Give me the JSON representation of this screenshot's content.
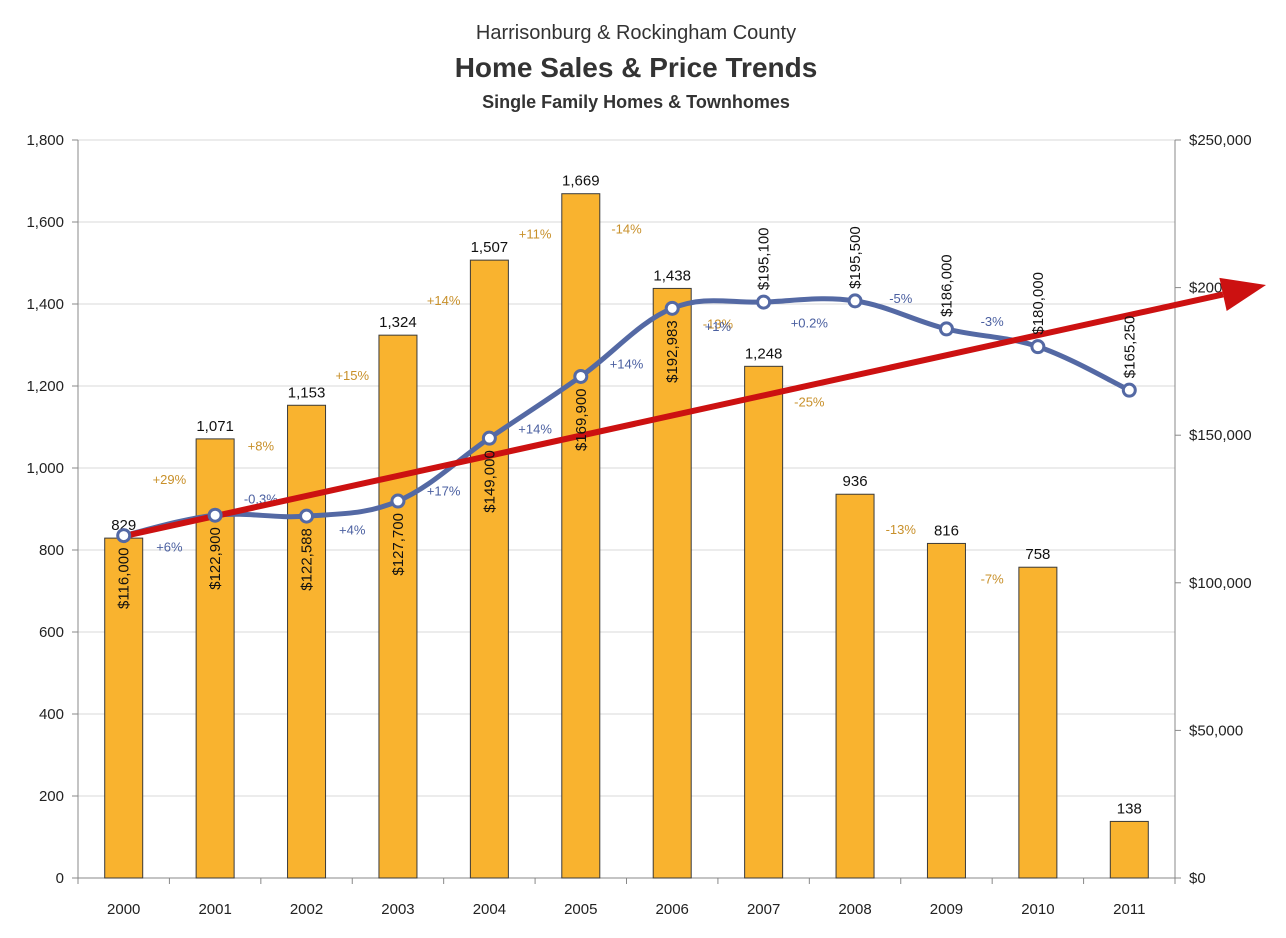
{
  "title": "Harrisonburg & Rockingham County",
  "subtitle": "Home Sales & Price Trends",
  "subtitle2": "Single Family Homes & Townhomes",
  "colors": {
    "bars": "#f9b32f",
    "priceLine": "#5469a4",
    "trendArrow": "#cc1111",
    "grid": "#d9d9d9"
  },
  "chart_data": {
    "type": "bar",
    "categories": [
      "2000",
      "2001",
      "2002",
      "2003",
      "2004",
      "2005",
      "2006",
      "2007",
      "2008",
      "2009",
      "2010",
      "2011"
    ],
    "series": [
      {
        "values": [
          829,
          1071,
          1153,
          1324,
          1507,
          1669,
          1438,
          1248,
          936,
          816,
          758,
          138
        ],
        "labels": [
          "829",
          "1,071",
          "1,153",
          "1,324",
          "1,507",
          "1,669",
          "1,438",
          "1,248",
          "936",
          "816",
          "758",
          "138"
        ]
      },
      {
        "type": "line",
        "axis": "right",
        "values": [
          116000,
          122900,
          122588,
          127700,
          149000,
          169900,
          192983,
          195100,
          195500,
          186000,
          180000,
          165250
        ],
        "labels": [
          "$116,000",
          "$122,900",
          "$122,588",
          "$127,700",
          "$149,000",
          "$169,900",
          "$192,983",
          "$195,100",
          "$195,500",
          "$186,000",
          "$180,000",
          "$165,250"
        ]
      }
    ],
    "sales_change": [
      "+29%",
      "+8%",
      "+15%",
      "+14%",
      "+11%",
      "-14%",
      "-13%",
      "-25%",
      "-13%",
      "-7%"
    ],
    "price_change": [
      "+6%",
      "-0.3%",
      "+4%",
      "+17%",
      "+14%",
      "+14%",
      "+1%",
      "+0.2%",
      "-5%",
      "-3%"
    ],
    "y_left": {
      "ylim": [
        0,
        1800
      ],
      "ticks": [
        "0",
        "200",
        "400",
        "600",
        "800",
        "1,000",
        "1,200",
        "1,400",
        "1,600",
        "1,800"
      ]
    },
    "y_right": {
      "ylim": [
        0,
        250000
      ],
      "ticks": [
        "$0",
        "$50,000",
        "$100,000",
        "$150,000",
        "$200,000",
        "$250,000"
      ]
    },
    "trend_arrow": {
      "from_year": "2000",
      "from_value": 829,
      "direction": "up"
    },
    "grid": true
  }
}
